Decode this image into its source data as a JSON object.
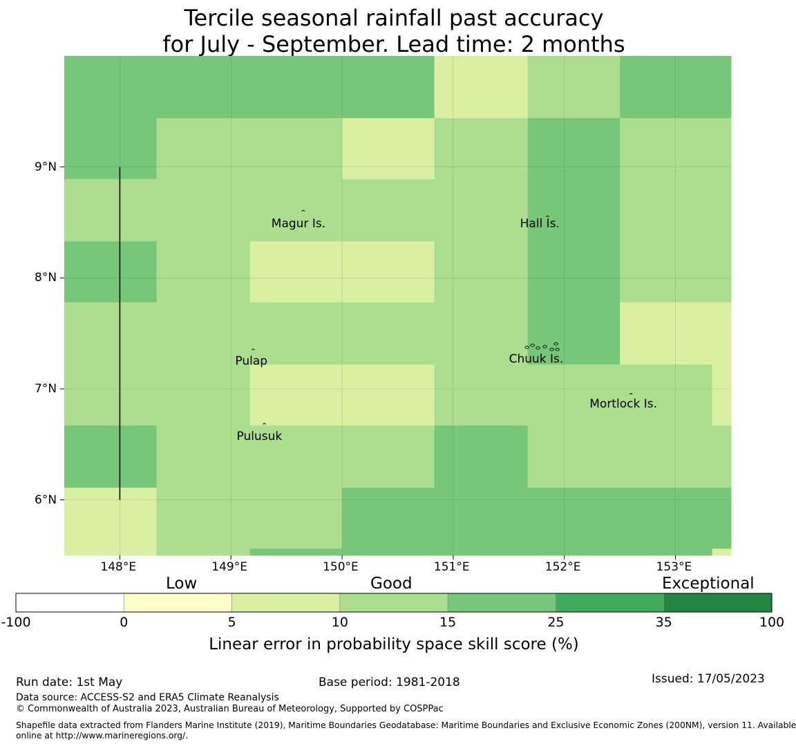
{
  "title_line1": "Tercile seasonal rainfall past accuracy",
  "title_line2": "for July - September. Lead time: 2 months",
  "map": {
    "lon_range": [
      147.5,
      153.5
    ],
    "lat_range": [
      5.5,
      10.0
    ],
    "lat_ticks": [
      {
        "value": 9,
        "label": "9°N"
      },
      {
        "value": 8,
        "label": "8°N"
      },
      {
        "value": 7,
        "label": "7°N"
      },
      {
        "value": 6,
        "label": "6°N"
      }
    ],
    "lon_ticks": [
      {
        "value": 148,
        "label": "148°E"
      },
      {
        "value": 149,
        "label": "149°E"
      },
      {
        "value": 150,
        "label": "150°E"
      },
      {
        "value": 151,
        "label": "151°E"
      },
      {
        "value": 152,
        "label": "152°E"
      },
      {
        "value": 153,
        "label": "153°E"
      }
    ],
    "grid_lon_edges": [
      147.5,
      148.33,
      149.17,
      150.0,
      150.83,
      151.67,
      152.5,
      153.33,
      153.5
    ],
    "grid_lat_edges": [
      10.0,
      9.44,
      8.89,
      8.33,
      7.78,
      7.22,
      6.67,
      6.11,
      5.56,
      5.5
    ],
    "cell_categories": [
      [
        3,
        3,
        3,
        3,
        1,
        2,
        3,
        3
      ],
      [
        3,
        2,
        2,
        1,
        2,
        3,
        2,
        2
      ],
      [
        2,
        2,
        2,
        2,
        2,
        3,
        2,
        2
      ],
      [
        3,
        2,
        1,
        1,
        2,
        3,
        2,
        2
      ],
      [
        2,
        2,
        2,
        2,
        2,
        3,
        1,
        1
      ],
      [
        2,
        2,
        1,
        1,
        2,
        2,
        2,
        1
      ],
      [
        3,
        2,
        2,
        2,
        3,
        2,
        2,
        2
      ],
      [
        1,
        2,
        2,
        3,
        3,
        3,
        3,
        3
      ],
      [
        1,
        2,
        3,
        3,
        3,
        3,
        3,
        1
      ]
    ],
    "islands": [
      {
        "name": "Magur Is.",
        "lon": 149.65,
        "lat": 8.6
      },
      {
        "name": "Hall Is.",
        "lon": 151.85,
        "lat": 8.55
      },
      {
        "name": "Pulap",
        "lon": 149.2,
        "lat": 7.35
      },
      {
        "name": "Chuuk Is.",
        "lon": 151.8,
        "lat": 7.38
      },
      {
        "name": "Mortlock Is.",
        "lon": 152.6,
        "lat": 6.95
      },
      {
        "name": "Pulusuk",
        "lon": 149.3,
        "lat": 6.68
      }
    ],
    "boundary_line": {
      "lon": 148.0,
      "lat_from": 6.0,
      "lat_to": 9.0
    }
  },
  "colorbar": {
    "band_labels": [
      "Low",
      "Good",
      "Exceptional"
    ],
    "tick_labels": [
      "-100",
      "0",
      "5",
      "10",
      "15",
      "25",
      "35",
      "100"
    ],
    "colors": [
      "#ffffff",
      "#ffffcc",
      "#d9f0a3",
      "#addd8e",
      "#78c679",
      "#41ab5d",
      "#238443"
    ],
    "title": "Linear error in probability space skill score (%)"
  },
  "palette": {
    "cat1": "#d9f0a3",
    "cat2": "#addd8e",
    "cat3": "#78c679"
  },
  "footer": {
    "run_date": "Run date: 1st May",
    "base_period": "Base period: 1981-2018",
    "issued": "Issued: 17/05/2023",
    "data_source": "Data source: ACCESS-S2 and ERA5 Climate Reanalysis",
    "copyright": "© Commonwealth of Australia 2023, Australian Bureau of Meteorology, Supported by COSPPac",
    "shapefile_line1": "Shapefile data extracted from Flanders Marine Institute (2019), Maritime Boundaries Geodatabase: Maritime Boundaries and Exclusive Economic Zones (200NM), version 11. Available",
    "shapefile_line2": "online at http://www.marineregions.org/."
  }
}
